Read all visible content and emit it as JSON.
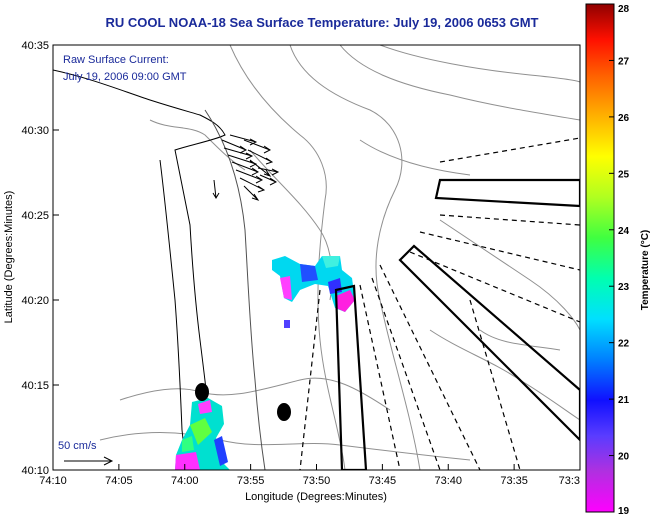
{
  "title": "RU COOL  NOAA-18  Sea Surface Temperature:  July 19, 2006 0653 GMT",
  "annotation": {
    "line1": "Raw Surface Current:",
    "line2": "July 19, 2006 09:00 GMT"
  },
  "scale_label": "50 cm/s",
  "colorbar": {
    "label": "Temperature (°C)",
    "ticks": [
      "28",
      "27",
      "26",
      "25",
      "24",
      "23",
      "22",
      "21",
      "20",
      "19"
    ]
  },
  "chart_data": {
    "type": "map",
    "xlabel": "Longitude (Degrees:Minutes)",
    "ylabel": "Latitude (Degrees:Minutes)",
    "x_ticks": [
      "74:10",
      "74:05",
      "74:00",
      "73:55",
      "73:50",
      "73:45",
      "73:40",
      "73:35",
      "73:3"
    ],
    "y_ticks": [
      "40:35",
      "40:30",
      "40:25",
      "40:20",
      "40:15",
      "40:10"
    ],
    "xlim": [
      "74:10",
      "73:30"
    ],
    "ylim": [
      "40:10",
      "40:35"
    ],
    "colorbar_range": [
      19,
      28
    ],
    "sst_patches": [
      {
        "lon": "73:52",
        "lat": "40:21",
        "temperature": 21.5
      },
      {
        "lon": "73:59",
        "lat": "40:12",
        "temperature": 21.0
      }
    ],
    "current_vectors_region": {
      "lon": "73:58",
      "lat": "40:29"
    },
    "reference_vector": "50 cm/s"
  }
}
